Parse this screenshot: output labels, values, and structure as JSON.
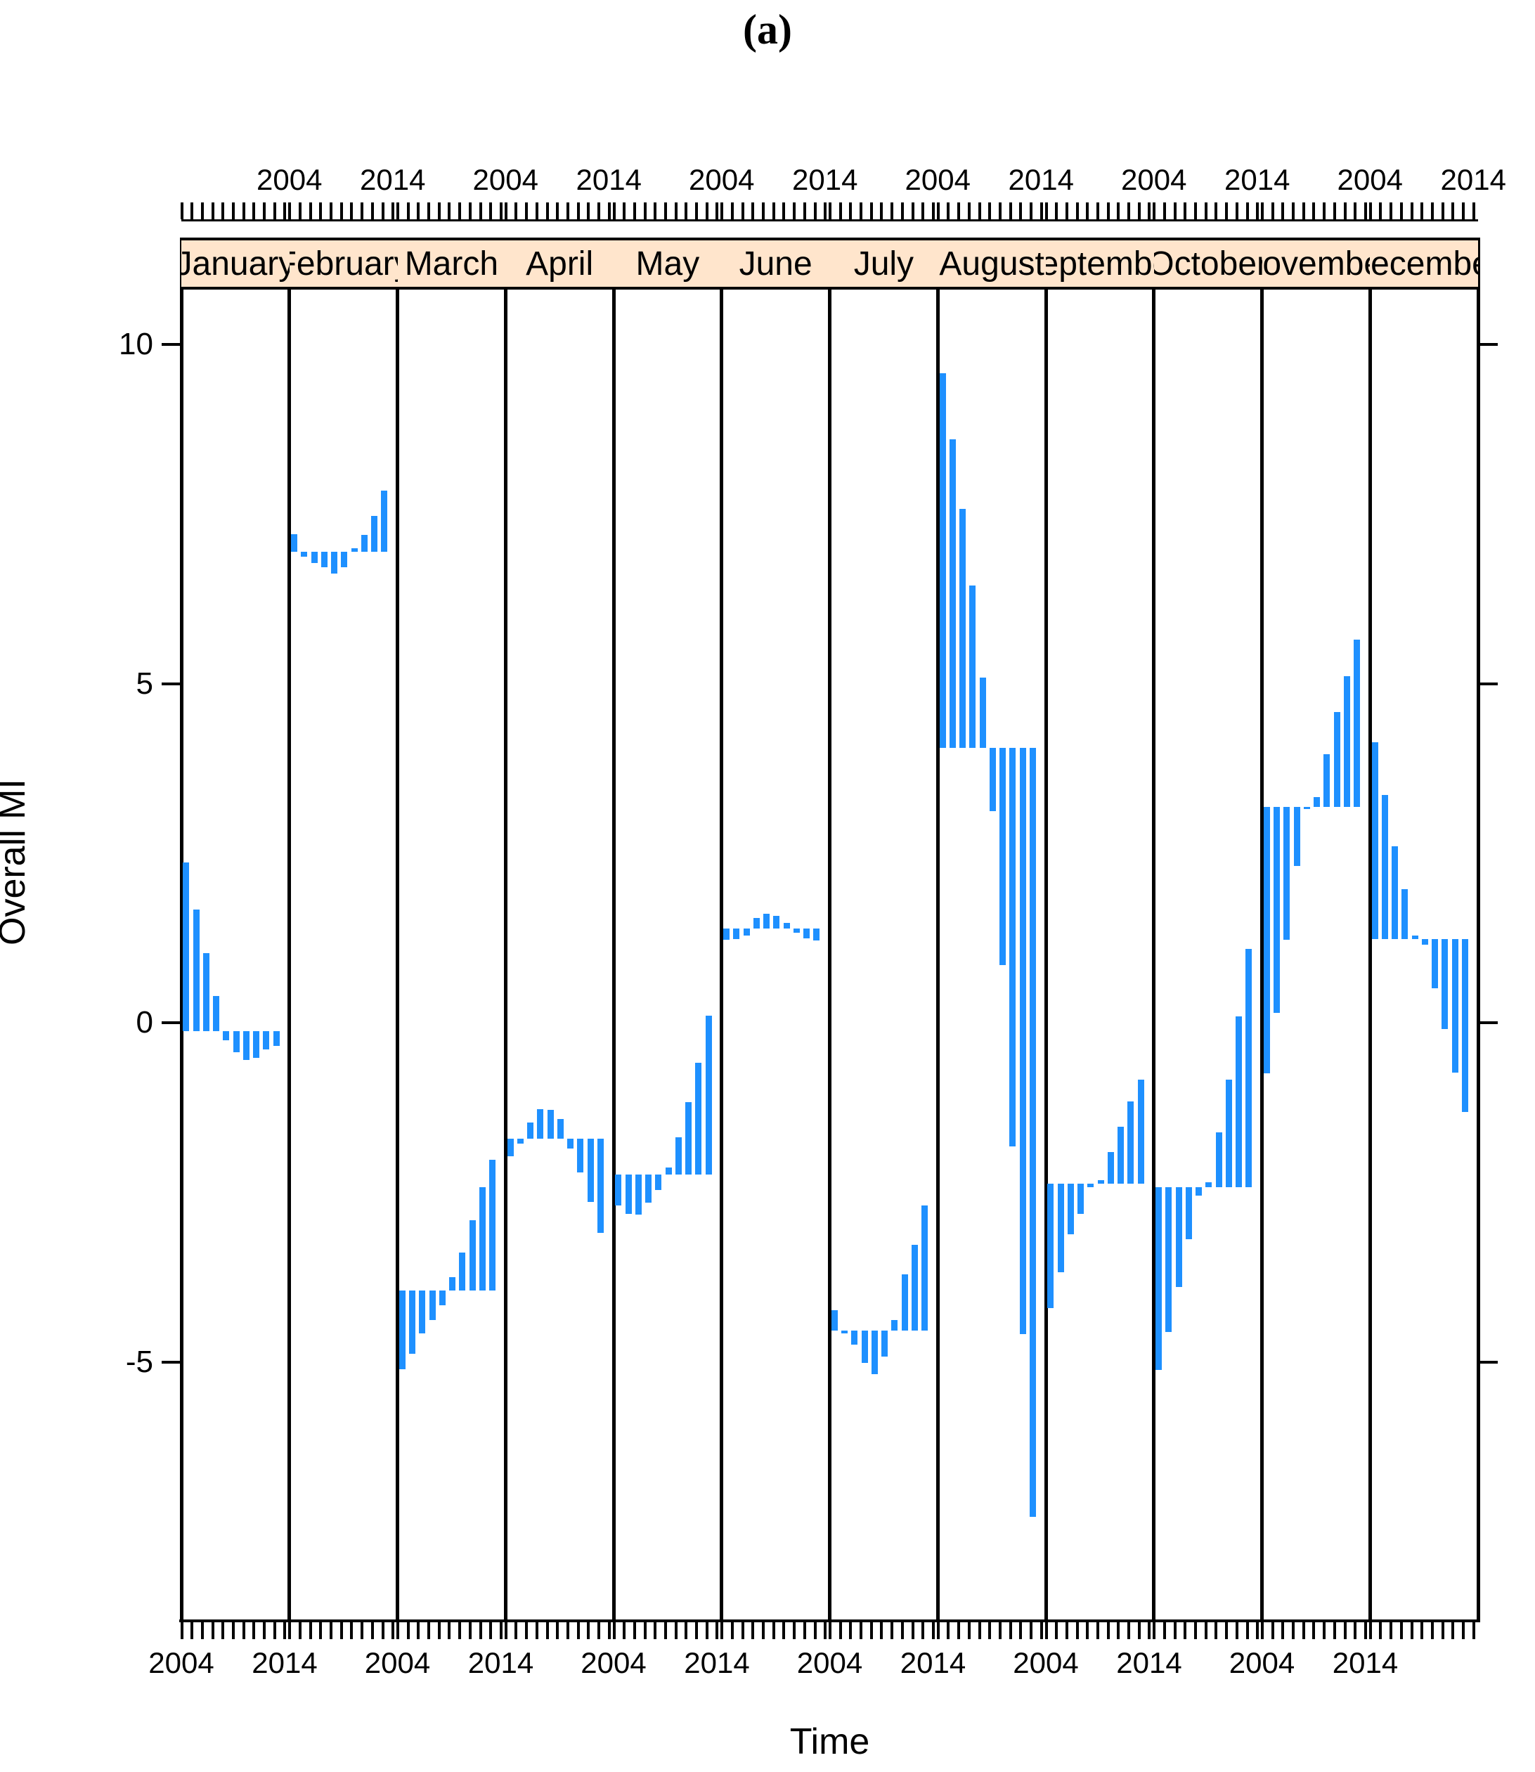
{
  "title": "(a)",
  "axes": {
    "ylabel": "Overall MI",
    "xlabel": "Time",
    "y_ticks": [
      10,
      5,
      0,
      -5
    ],
    "x_tick_labels": [
      "2004",
      "2014"
    ]
  },
  "colors": {
    "bar": "#1E90FF",
    "strip_bg": "#FFE5CC",
    "axis": "#000000",
    "text": "#000000"
  },
  "chart_data": {
    "type": "bar",
    "subtype": "seasonal-subseries (monthplot, type=h)",
    "xlabel": "Time",
    "ylabel": "Overall MI",
    "x_year_start": 2004,
    "x_year_end": 2014,
    "ylim": [
      -8.8,
      10.8
    ],
    "y_ticks": [
      10,
      5,
      0,
      -5
    ],
    "legend": "none",
    "months": [
      "January",
      "February",
      "March",
      "April",
      "May",
      "June",
      "July",
      "August",
      "September",
      "October",
      "November",
      "December"
    ],
    "series": [
      {
        "month": "January",
        "ref": -0.12,
        "values": [
          2.36,
          1.67,
          1.03,
          0.39,
          -0.26,
          -0.44,
          -0.55,
          -0.52,
          -0.39,
          -0.34
        ]
      },
      {
        "month": "February",
        "ref": 6.94,
        "values": [
          7.2,
          6.87,
          6.78,
          6.71,
          6.62,
          6.71,
          6.99,
          7.19,
          7.47,
          7.84
        ]
      },
      {
        "month": "March",
        "ref": -3.95,
        "values": [
          -5.11,
          -4.88,
          -4.58,
          -4.38,
          -4.17,
          -3.75,
          -3.39,
          -2.91,
          -2.43,
          -2.02
        ]
      },
      {
        "month": "April",
        "ref": -1.71,
        "values": [
          -1.97,
          -1.78,
          -1.47,
          -1.27,
          -1.29,
          -1.42,
          -1.85,
          -2.21,
          -2.64,
          -3.1
        ]
      },
      {
        "month": "May",
        "ref": -2.24,
        "values": [
          -2.69,
          -2.82,
          -2.83,
          -2.65,
          -2.47,
          -2.13,
          -1.69,
          -1.17,
          -0.59,
          0.1
        ]
      },
      {
        "month": "June",
        "ref": 1.39,
        "values": [
          1.22,
          1.23,
          1.29,
          1.54,
          1.61,
          1.57,
          1.47,
          1.33,
          1.24,
          1.21
        ]
      },
      {
        "month": "July",
        "ref": -4.54,
        "values": [
          -4.24,
          -4.58,
          -4.75,
          -5.02,
          -5.18,
          -4.92,
          -4.38,
          -3.71,
          -3.27,
          -2.69
        ]
      },
      {
        "month": "August",
        "ref": 4.05,
        "values": [
          9.57,
          8.6,
          7.58,
          6.45,
          5.09,
          3.12,
          0.85,
          -1.82,
          -4.59,
          -7.29
        ]
      },
      {
        "month": "September",
        "ref": -2.37,
        "values": [
          -4.21,
          -3.68,
          -3.12,
          -2.82,
          -2.42,
          -2.32,
          -1.91,
          -1.53,
          -1.16,
          -0.84
        ]
      },
      {
        "month": "October",
        "ref": -2.42,
        "values": [
          -5.12,
          -4.56,
          -3.9,
          -3.19,
          -2.55,
          -2.35,
          -1.62,
          -0.84,
          0.09,
          1.09
        ]
      },
      {
        "month": "November",
        "ref": 3.18,
        "values": [
          -0.75,
          0.14,
          1.22,
          2.31,
          3.15,
          3.33,
          3.96,
          4.58,
          5.11,
          5.65
        ]
      },
      {
        "month": "December",
        "ref": 1.23,
        "values": [
          4.13,
          3.36,
          2.6,
          1.97,
          1.28,
          1.15,
          0.51,
          -0.09,
          -0.74,
          -1.32
        ]
      }
    ]
  }
}
